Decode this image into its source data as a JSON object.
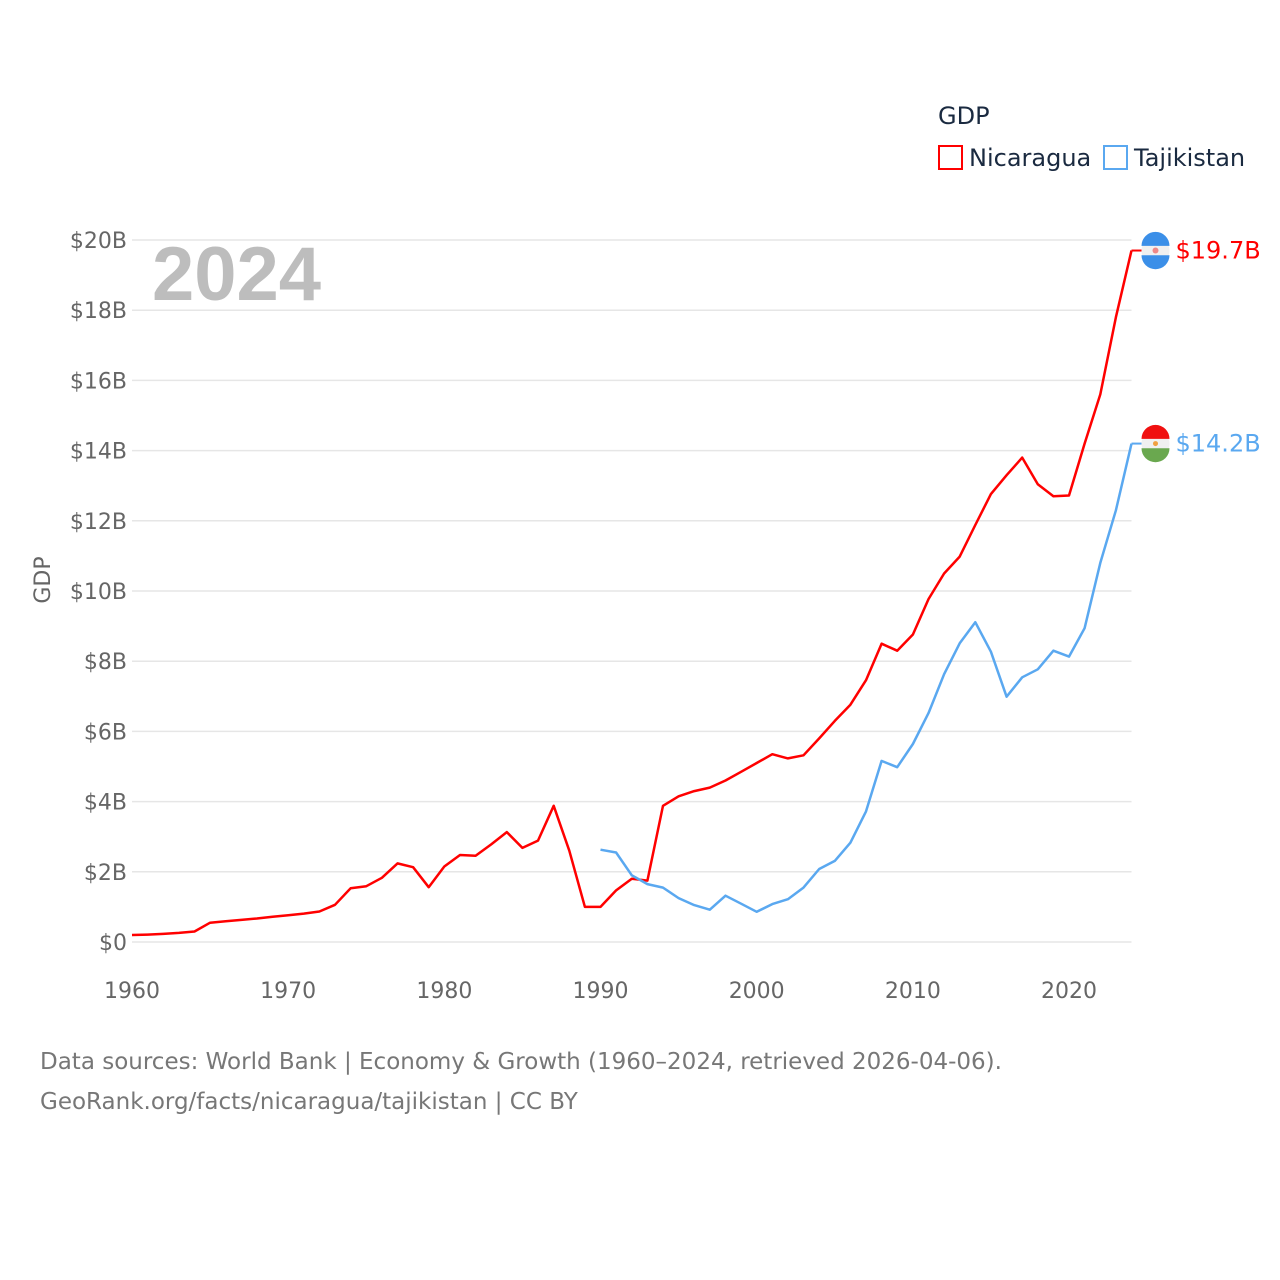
{
  "chart_data": {
    "type": "line",
    "title": "GDP",
    "year_label": "2024",
    "ylabel": "GDP",
    "xlabel": "",
    "xlim": [
      1960,
      2024
    ],
    "ylim": [
      0,
      20
    ],
    "x_ticks": [
      "1960",
      "1970",
      "1980",
      "1990",
      "2000",
      "2010",
      "2020"
    ],
    "y_ticks": [
      "$0",
      "$2B",
      "$4B",
      "$6B",
      "$8B",
      "$10B",
      "$12B",
      "$14B",
      "$16B",
      "$18B",
      "$20B"
    ],
    "grid": true,
    "legend_position": "top-right",
    "units": "billions USD",
    "series": [
      {
        "name": "Nicaragua",
        "color": "#ff0000",
        "end_label": "$19.7B",
        "flag": "nicaragua-flag",
        "start_year": 1960,
        "values": [
          0.2,
          0.21,
          0.23,
          0.26,
          0.3,
          0.55,
          0.59,
          0.63,
          0.67,
          0.72,
          0.76,
          0.81,
          0.87,
          1.06,
          1.53,
          1.59,
          1.83,
          2.24,
          2.13,
          1.56,
          2.15,
          2.48,
          2.46,
          2.78,
          3.13,
          2.68,
          2.89,
          3.88,
          2.6,
          1.0,
          1.0,
          1.47,
          1.8,
          1.75,
          3.88,
          4.15,
          4.3,
          4.4,
          4.6,
          4.85,
          5.1,
          5.35,
          5.23,
          5.32,
          5.8,
          6.3,
          6.76,
          7.46,
          8.5,
          8.3,
          8.76,
          9.77,
          10.5,
          10.98,
          11.88,
          12.76,
          13.3,
          13.8,
          13.04,
          12.7,
          12.72,
          14.2,
          15.6,
          17.8,
          19.7
        ]
      },
      {
        "name": "Tajikistan",
        "color": "#5aa8f0",
        "end_label": "$14.2B",
        "flag": "tajikistan-flag",
        "start_year": 1990,
        "values": [
          2.63,
          2.55,
          1.9,
          1.65,
          1.55,
          1.25,
          1.05,
          0.92,
          1.32,
          1.09,
          0.86,
          1.08,
          1.22,
          1.55,
          2.08,
          2.31,
          2.83,
          3.72,
          5.16,
          4.98,
          5.64,
          6.52,
          7.63,
          8.51,
          9.11,
          8.27,
          6.99,
          7.54,
          7.77,
          8.3,
          8.13,
          8.94,
          10.8,
          12.3,
          14.2
        ]
      }
    ]
  },
  "footer": {
    "line1": "Data sources: World Bank | Economy & Growth (1960–2024, retrieved 2026-04-06).",
    "line2": "GeoRank.org/facts/nicaragua/tajikistan | CC BY"
  }
}
